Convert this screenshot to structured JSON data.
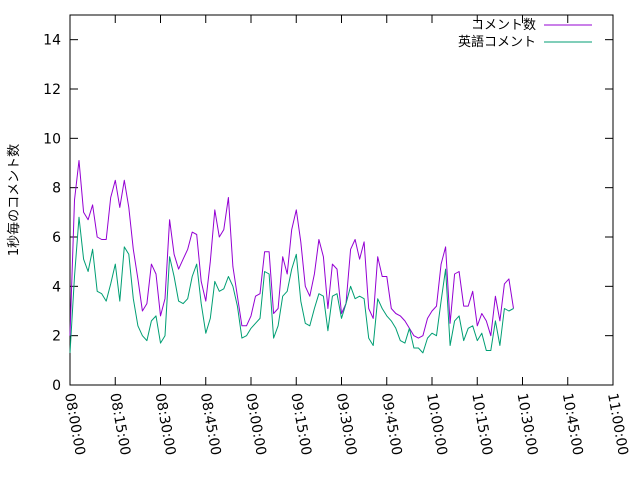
{
  "chart_data": {
    "type": "line",
    "title": "",
    "xlabel": "",
    "ylabel": "1秒毎のコメント数",
    "ylim": [
      0,
      15
    ],
    "xlim": [
      "08:00:00",
      "11:00:00"
    ],
    "y_ticks": [
      0,
      2,
      4,
      6,
      8,
      10,
      12,
      14
    ],
    "x_ticks": [
      "08:00:00",
      "08:15:00",
      "08:30:00",
      "08:45:00",
      "09:00:00",
      "09:15:00",
      "09:30:00",
      "09:45:00",
      "10:00:00",
      "10:15:00",
      "10:30:00",
      "10:45:00",
      "11:00:00"
    ],
    "grid": false,
    "legend_position": "top-right",
    "x_step_seconds": 90,
    "x_start": "08:00:00",
    "series": [
      {
        "name": "コメント数",
        "color": "#9400d3",
        "values": [
          2.0,
          7.5,
          9.1,
          7.0,
          6.7,
          7.3,
          6.0,
          5.9,
          5.9,
          7.6,
          8.3,
          7.2,
          8.3,
          7.2,
          5.5,
          4.3,
          3.0,
          3.3,
          4.9,
          4.5,
          2.8,
          3.5,
          6.7,
          5.3,
          4.7,
          5.1,
          5.5,
          6.2,
          6.1,
          4.2,
          3.4,
          5.0,
          7.1,
          6.0,
          6.3,
          7.6,
          4.8,
          3.6,
          2.4,
          2.4,
          2.8,
          3.6,
          3.7,
          5.4,
          5.4,
          2.9,
          3.1,
          5.2,
          4.5,
          6.3,
          7.1,
          5.8,
          4.0,
          3.6,
          4.5,
          5.9,
          5.2,
          3.1,
          4.9,
          4.7,
          2.9,
          3.3,
          5.5,
          5.9,
          5.1,
          5.8,
          3.1,
          2.7,
          5.2,
          4.4,
          4.4,
          3.1,
          2.9,
          2.8,
          2.6,
          2.3,
          2.0,
          1.9,
          2.0,
          2.7,
          3.0,
          3.2,
          4.9,
          5.6,
          2.5,
          4.5,
          4.6,
          3.2,
          3.2,
          3.8,
          2.4,
          2.9,
          2.6,
          2.0,
          3.6,
          2.6,
          4.1,
          4.3,
          3.1
        ]
      },
      {
        "name": "英語コメント",
        "color": "#009e73",
        "values": [
          1.3,
          4.4,
          6.8,
          5.1,
          4.6,
          5.5,
          3.8,
          3.7,
          3.4,
          4.1,
          4.9,
          3.4,
          5.6,
          5.3,
          3.5,
          2.4,
          2.0,
          1.8,
          2.6,
          2.8,
          1.7,
          2.0,
          5.2,
          4.4,
          3.4,
          3.3,
          3.5,
          4.4,
          4.9,
          3.3,
          2.1,
          2.7,
          4.2,
          3.8,
          3.9,
          4.4,
          4.0,
          3.2,
          1.9,
          2.0,
          2.3,
          2.5,
          2.7,
          4.6,
          4.5,
          1.9,
          2.4,
          3.6,
          3.8,
          4.7,
          5.3,
          3.4,
          2.5,
          2.4,
          3.1,
          3.7,
          3.6,
          2.2,
          3.6,
          3.7,
          2.7,
          3.3,
          4.0,
          3.5,
          3.6,
          3.5,
          1.9,
          1.6,
          3.5,
          3.1,
          2.8,
          2.6,
          2.3,
          1.8,
          1.7,
          2.3,
          1.5,
          1.5,
          1.3,
          1.9,
          2.1,
          2.0,
          3.4,
          4.7,
          1.6,
          2.6,
          2.8,
          1.8,
          2.3,
          2.4,
          1.8,
          2.1,
          1.4,
          1.4,
          2.6,
          1.6,
          3.1,
          3.0,
          3.1
        ]
      }
    ]
  }
}
